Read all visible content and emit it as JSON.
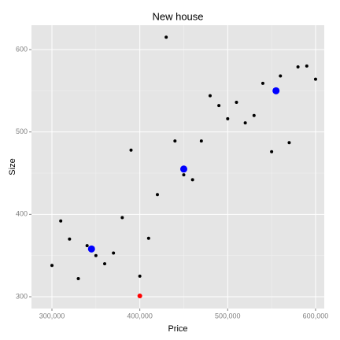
{
  "chart_data": {
    "type": "scatter",
    "title": "New house",
    "x_label": "Price",
    "y_label": "Size",
    "series": [
      {
        "color": "#000000",
        "size": 2,
        "x": [
          300000,
          310000,
          320000,
          330000,
          340000,
          350000,
          360000,
          370000,
          380000,
          390000,
          400000,
          410000,
          420000,
          430000,
          440000,
          450000,
          460000,
          470000,
          480000,
          490000,
          500000,
          510000,
          520000,
          530000,
          540000,
          550000,
          560000,
          570000,
          580000,
          590000,
          600000
        ],
        "values": [
          338,
          392,
          370,
          322,
          362,
          350,
          340,
          353,
          396,
          478,
          325,
          371,
          424,
          615,
          489,
          448,
          442,
          489,
          544,
          532,
          516,
          536,
          511,
          520,
          559,
          476,
          568,
          487,
          579,
          580,
          564
        ]
      },
      {
        "color": "#0000ff",
        "size": 4.5,
        "x": [
          345000,
          450000,
          555000
        ],
        "values": [
          358,
          455,
          550
        ]
      },
      {
        "color": "#ff0000",
        "size": 3,
        "x": [
          400000
        ],
        "values": [
          301
        ]
      }
    ],
    "xlim": [
      276700,
      609900
    ],
    "ylim": [
      285.7,
      629.6
    ],
    "xticks": [
      {
        "value": 300000,
        "label": "300,000"
      },
      {
        "value": 400000,
        "label": "400,000"
      },
      {
        "value": 500000,
        "label": "500,000"
      },
      {
        "value": 600000,
        "label": "600,000"
      }
    ],
    "yticks": [
      300,
      400,
      500,
      600
    ],
    "grid": true
  }
}
